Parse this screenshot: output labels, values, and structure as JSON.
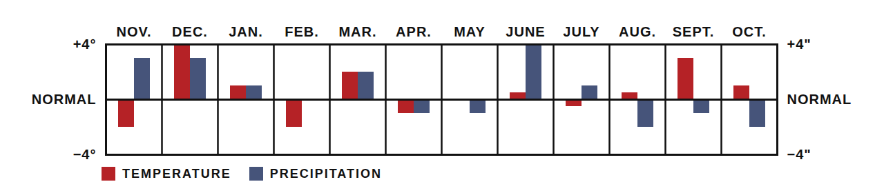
{
  "chart_data": {
    "type": "bar",
    "categories": [
      "NOV.",
      "DEC.",
      "JAN.",
      "FEB.",
      "MAR.",
      "APR.",
      "MAY",
      "JUNE",
      "JULY",
      "AUG.",
      "SEPT.",
      "OCT."
    ],
    "series": [
      {
        "name": "TEMPERATURE",
        "color": "#b52226",
        "values": [
          -2,
          4,
          1,
          -2,
          2,
          -1,
          0,
          0.5,
          -0.5,
          0.5,
          3,
          1
        ]
      },
      {
        "name": "PRECIPITATION",
        "color": "#46547a",
        "values": [
          3,
          3,
          1,
          0,
          2,
          -1,
          -1,
          4,
          1,
          -2,
          -1,
          -2
        ],
        "axis": "y2"
      }
    ],
    "ylim": [
      -4,
      4
    ],
    "yticks": [
      {
        "value": 4,
        "label": "+4°"
      },
      {
        "value": 0,
        "label": "NORMAL"
      },
      {
        "value": -4,
        "label": "−4°"
      }
    ],
    "y2lim": [
      -4,
      4
    ],
    "y2ticks": [
      {
        "value": 4,
        "label": "+4\""
      },
      {
        "value": 0,
        "label": "NORMAL"
      },
      {
        "value": -4,
        "label": "−4\""
      }
    ]
  }
}
